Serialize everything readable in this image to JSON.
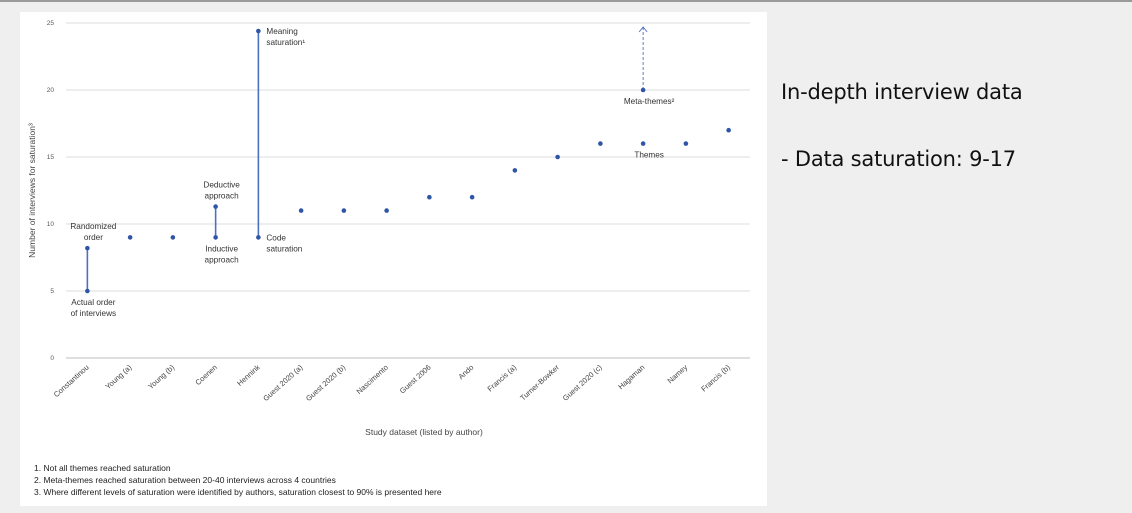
{
  "chart_data": {
    "type": "scatter",
    "xlabel": "Study dataset (listed by author)",
    "ylabel": "Number of interviews for saturation³",
    "ylim": [
      0,
      25
    ],
    "yticks": [
      0,
      5,
      10,
      15,
      20,
      25
    ],
    "grid": true,
    "categories": [
      "Constantinou",
      "Young (a)",
      "Young (b)",
      "Coenen",
      "Hennink",
      "Guest 2020 (a)",
      "Guest 2020 (b)",
      "Nascimento",
      "Guest 2006",
      "Ando",
      "Francis (a)",
      "Turner-Bowker",
      "Guest 2020 (c)",
      "Hagaman",
      "Namey",
      "Francis (b)"
    ],
    "points": [
      {
        "x": "Constantinou",
        "y": 5
      },
      {
        "x": "Constantinou",
        "y": 8.2
      },
      {
        "x": "Young (a)",
        "y": 9
      },
      {
        "x": "Young (b)",
        "y": 9
      },
      {
        "x": "Coenen",
        "y": 9
      },
      {
        "x": "Coenen",
        "y": 11.3
      },
      {
        "x": "Hennink",
        "y": 9
      },
      {
        "x": "Hennink",
        "y": 24.4
      },
      {
        "x": "Guest 2020 (a)",
        "y": 11
      },
      {
        "x": "Guest 2020 (b)",
        "y": 11
      },
      {
        "x": "Nascimento",
        "y": 11
      },
      {
        "x": "Guest 2006",
        "y": 12
      },
      {
        "x": "Ando",
        "y": 12
      },
      {
        "x": "Francis (a)",
        "y": 14
      },
      {
        "x": "Turner-Bowker",
        "y": 15
      },
      {
        "x": "Guest 2020 (c)",
        "y": 16
      },
      {
        "x": "Hagaman",
        "y": 16
      },
      {
        "x": "Hagaman",
        "y": 20
      },
      {
        "x": "Namey",
        "y": 16
      },
      {
        "x": "Francis (b)",
        "y": 17
      }
    ],
    "ranges": [
      {
        "x": "Constantinou",
        "from": 5,
        "to": 8.2,
        "style": "solid"
      },
      {
        "x": "Coenen",
        "from": 9,
        "to": 11.3,
        "style": "solid"
      },
      {
        "x": "Hennink",
        "from": 9,
        "to": 24.4,
        "style": "solid"
      },
      {
        "x": "Hagaman",
        "from": 20,
        "to": 25,
        "style": "dashed-arrow"
      }
    ],
    "annotations": [
      {
        "x": "Constantinou",
        "y": 8.2,
        "lines": [
          "Randomized",
          "order"
        ],
        "position": "above"
      },
      {
        "x": "Constantinou",
        "y": 5,
        "lines": [
          "Actual order",
          "of interviews"
        ],
        "position": "below"
      },
      {
        "x": "Coenen",
        "y": 11.3,
        "lines": [
          "Deductive",
          "approach"
        ],
        "position": "above"
      },
      {
        "x": "Coenen",
        "y": 9,
        "lines": [
          "Inductive",
          "approach"
        ],
        "position": "below"
      },
      {
        "x": "Hennink",
        "y": 24.4,
        "lines": [
          "Meaning",
          "saturation¹"
        ],
        "position": "right"
      },
      {
        "x": "Hennink",
        "y": 9,
        "lines": [
          "Code",
          "saturation"
        ],
        "position": "right"
      },
      {
        "x": "Hagaman",
        "y": 20,
        "lines": [
          "Meta-themes²"
        ],
        "position": "below"
      },
      {
        "x": "Hagaman",
        "y": 16,
        "lines": [
          "Themes"
        ],
        "position": "below"
      }
    ],
    "point_color": "#2f56a6",
    "line_color": "#4a72c4"
  },
  "footnotes": [
    "1. Not all themes reached saturation",
    "2. Meta-themes reached saturation between 20-40 interviews across 4 countries",
    "3. Where different levels of saturation were identified by authors, saturation closest to 90% is presented here"
  ],
  "side": {
    "title": "In-depth interview data",
    "bullet": "- Data saturation: 9-17"
  }
}
